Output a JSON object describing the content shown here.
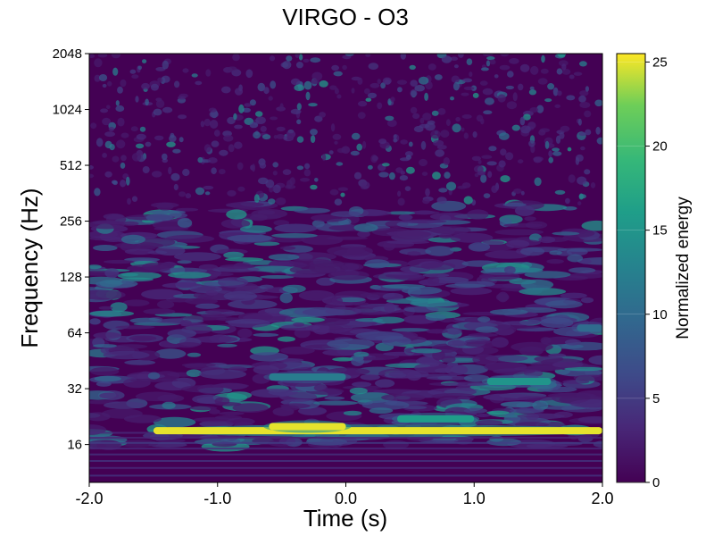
{
  "chart_data": {
    "type": "heatmap",
    "title": "VIRGO - O3",
    "xlabel": "Time (s)",
    "ylabel": "Frequency (Hz)",
    "xlim": [
      -2.0,
      2.0
    ],
    "ylim": [
      10,
      2048
    ],
    "yscale": "log2",
    "x_ticks": [
      -2.0,
      -1.0,
      0.0,
      1.0,
      2.0
    ],
    "x_tick_labels": [
      "-2.0",
      "-1.0",
      "0.0",
      "1.0",
      "2.0"
    ],
    "y_ticks": [
      16,
      32,
      64,
      128,
      256,
      512,
      1024,
      2048
    ],
    "y_tick_labels": [
      "16",
      "32",
      "64",
      "128",
      "256",
      "512",
      "1024",
      "2048"
    ],
    "colormap": "viridis",
    "colorbar": {
      "label": "Normalized energy",
      "range": [
        0,
        25.5
      ],
      "ticks": [
        0,
        5,
        10,
        15,
        20,
        25
      ],
      "tick_labels": [
        "0",
        "5",
        "10",
        "15",
        "20",
        "25"
      ]
    },
    "features": [
      {
        "t_start": -1.5,
        "t_end": 2.0,
        "freq_hz": 19,
        "energy": 25,
        "description": "persistent narrow-band line"
      },
      {
        "t_start": -0.6,
        "t_end": 0.0,
        "freq_hz": 20,
        "energy": 25
      },
      {
        "t_start": 0.4,
        "t_end": 1.0,
        "freq_hz": 22,
        "energy": 16
      },
      {
        "t_start": -0.6,
        "t_end": 0.0,
        "freq_hz": 37,
        "energy": 12
      },
      {
        "t_start": 1.1,
        "t_end": 1.6,
        "freq_hz": 35,
        "energy": 15
      },
      {
        "t_start": 1.8,
        "t_end": 2.0,
        "freq_hz": 68,
        "energy": 10
      }
    ]
  }
}
